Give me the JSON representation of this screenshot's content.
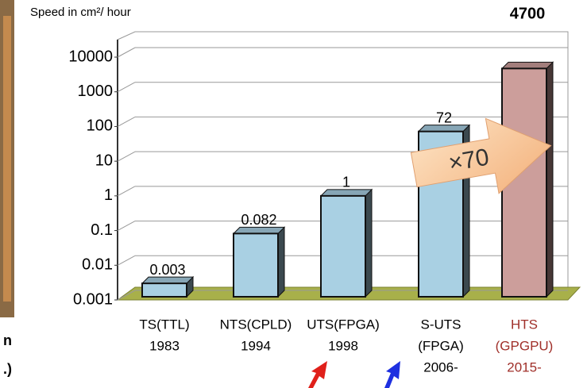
{
  "chart_data": {
    "type": "bar",
    "y_axis_label": "Speed in cm²/ hour",
    "categories": [
      [
        "TS(TTL)",
        "1983"
      ],
      [
        "NTS(CPLD)",
        "1994"
      ],
      [
        "UTS(FPGA)",
        "1998"
      ],
      [
        "S-UTS",
        "(FPGA)",
        "2006-"
      ],
      [
        "HTS",
        "(GPGPU)",
        "2015-"
      ]
    ],
    "values": [
      0.003,
      0.082,
      1,
      72,
      4700
    ],
    "colors": [
      "#a9d0e3",
      "#a9d0e3",
      "#a9d0e3",
      "#a9d0e3",
      "#cc9e9b"
    ],
    "category_label_colors": [
      "#000000",
      "#000000",
      "#000000",
      "#000000",
      "#a0302a"
    ],
    "log_scale": true,
    "ylim": [
      0.001,
      10000
    ],
    "yticks": [
      0.001,
      0.01,
      0.1,
      1,
      10,
      100,
      1000,
      10000
    ],
    "grid": true,
    "annotation": "×70",
    "left_crop_text": [
      "n",
      ".)"
    ]
  }
}
